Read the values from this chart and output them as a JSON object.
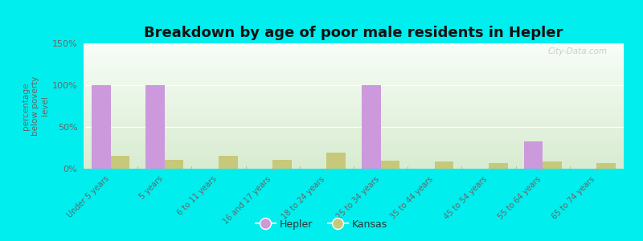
{
  "title": "Breakdown by age of poor male residents in Hepler",
  "ylabel": "percentage\nbelow poverty\nlevel",
  "categories": [
    "Under 5 years",
    "5 years",
    "6 to 11 years",
    "16 and 17 years",
    "18 to 24 years",
    "25 to 34 years",
    "35 to 44 years",
    "45 to 54 years",
    "55 to 64 years",
    "65 to 74 years"
  ],
  "hepler_values": [
    100,
    100,
    0,
    0,
    0,
    100,
    0,
    0,
    33,
    0
  ],
  "kansas_values": [
    15,
    11,
    15,
    11,
    19,
    10,
    9,
    7,
    9,
    7
  ],
  "hepler_color": "#cc99dd",
  "kansas_color": "#c8c87a",
  "background_color": "#00eeee",
  "ylim": [
    0,
    150
  ],
  "yticks": [
    0,
    50,
    100,
    150
  ],
  "ytick_labels": [
    "0%",
    "50%",
    "100%",
    "150%"
  ],
  "bar_width": 0.35,
  "title_fontsize": 13,
  "legend_labels": [
    "Hepler",
    "Kansas"
  ],
  "watermark": "City-Data.com",
  "plot_bg_color_top": "#f8fdf8",
  "plot_bg_color_bottom": "#d8ecd0"
}
